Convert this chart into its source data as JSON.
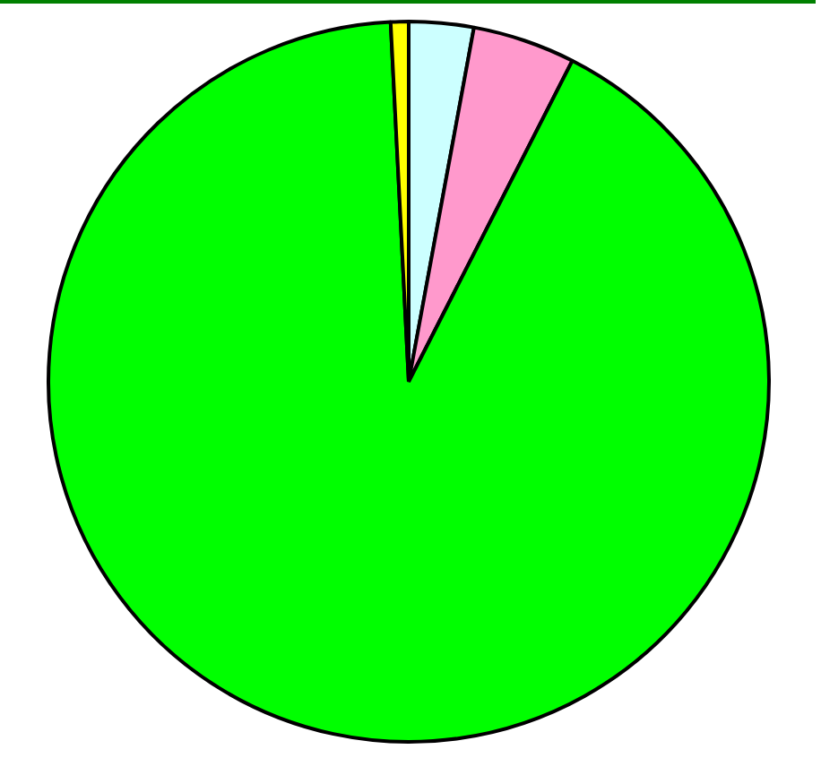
{
  "chart_data": {
    "type": "pie",
    "categories": [
      null,
      null,
      null,
      null
    ],
    "values": [
      2.9,
      4.6,
      91.7,
      0.8
    ],
    "colors": [
      "#ccffff",
      "#ff99cc",
      "#00ff00",
      "#ffff00"
    ],
    "legend": false
  }
}
